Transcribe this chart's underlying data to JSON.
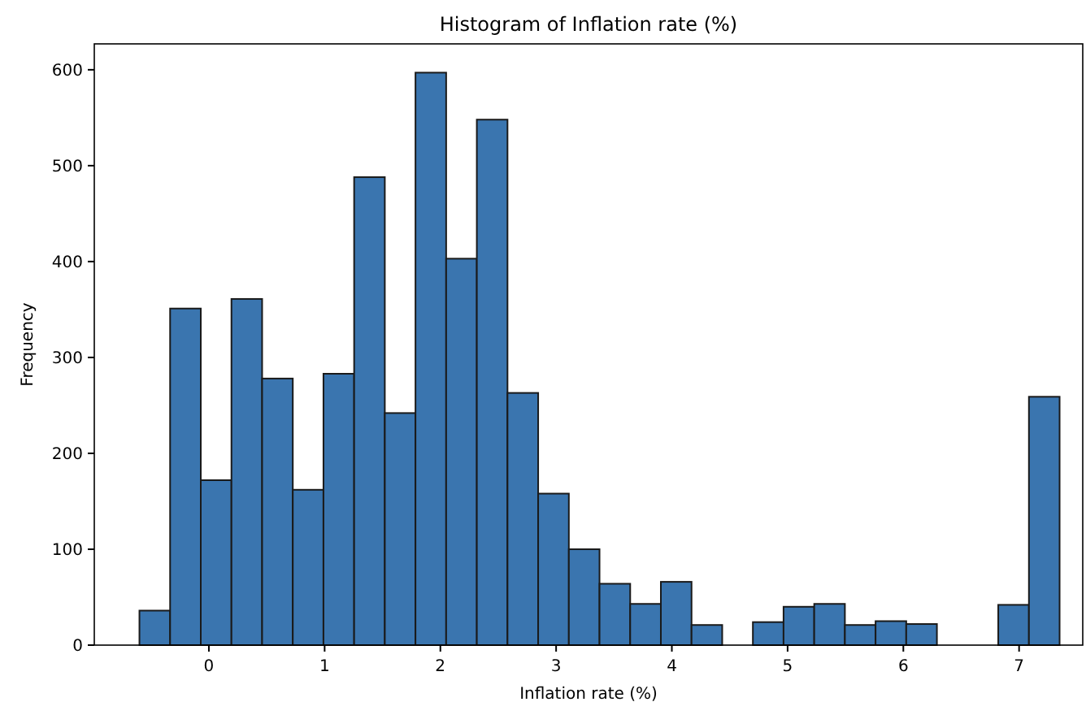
{
  "chart_data": {
    "type": "histogram",
    "title": "Histogram of Inflation rate (%)",
    "xlabel": "Inflation rate (%)",
    "ylabel": "Frequency",
    "bins": [
      -0.6,
      -0.335,
      -0.07,
      0.195,
      0.46,
      0.725,
      0.99,
      1.255,
      1.52,
      1.785,
      2.05,
      2.315,
      2.58,
      2.845,
      3.11,
      3.375,
      3.64,
      3.905,
      4.17,
      4.435,
      4.7,
      4.965,
      5.23,
      5.495,
      5.76,
      6.025,
      6.29,
      6.555,
      6.82,
      7.085,
      7.35
    ],
    "values": [
      36,
      351,
      172,
      361,
      278,
      162,
      283,
      488,
      242,
      597,
      403,
      548,
      263,
      158,
      100,
      64,
      43,
      66,
      21,
      0,
      24,
      40,
      43,
      21,
      25,
      22,
      0,
      0,
      42,
      259
    ],
    "color": "#3a75af",
    "xlim": [
      -0.99,
      7.55
    ],
    "xticks": [
      0,
      1,
      2,
      3,
      4,
      5,
      6,
      7
    ],
    "ylim": [
      0,
      627
    ],
    "yticks": [
      0,
      100,
      200,
      300,
      400,
      500,
      600
    ]
  }
}
